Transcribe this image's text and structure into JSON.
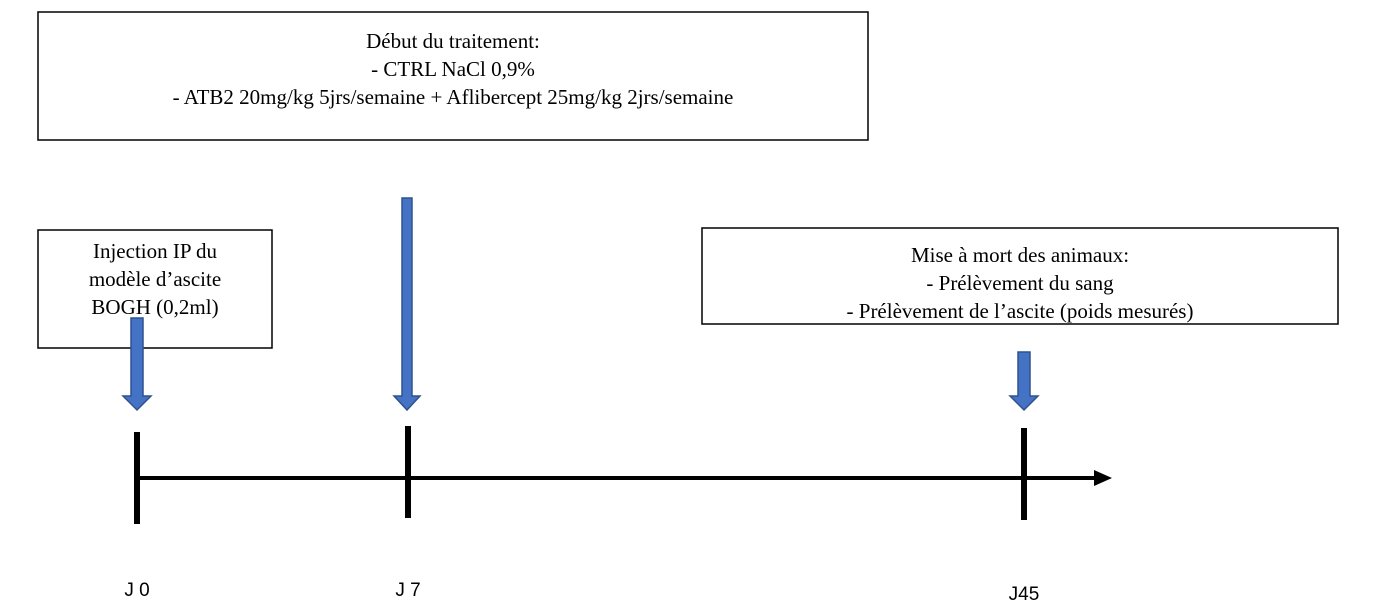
{
  "boxes": [
    {
      "lines": [
        "Début du traitement:",
        "- CTRL NaCl 0,9%",
        "- ATB2 20mg/kg 5jrs/semaine + Aflibercept 25mg/kg 2jrs/semaine"
      ]
    },
    {
      "lines": [
        "Injection IP du",
        "modèle d’ascite",
        "BOGH (0,2ml)"
      ]
    },
    {
      "lines": [
        "Mise à mort des animaux:",
        "- Prélèvement du sang",
        "- Prélèvement de l’ascite (poids mesurés)"
      ]
    }
  ],
  "timepoints": [
    "J 0",
    "J 7",
    "J45"
  ]
}
